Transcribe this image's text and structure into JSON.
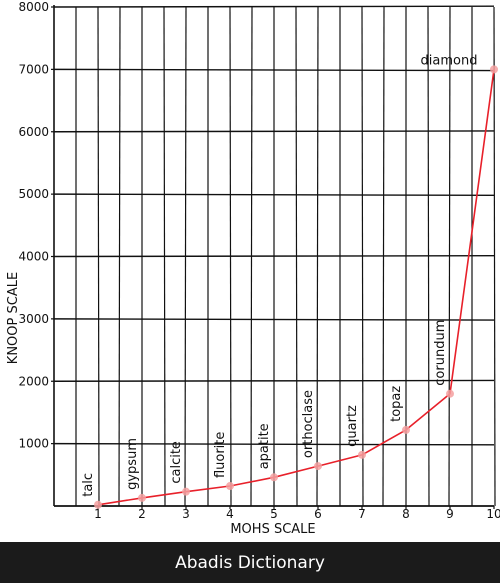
{
  "chart_data": {
    "type": "line",
    "xlabel": "MOHS SCALE",
    "ylabel": "KNOOP  SCALE",
    "xlim": [
      0,
      10
    ],
    "ylim": [
      0,
      8000
    ],
    "x_ticks": [
      "1",
      "2",
      "3",
      "4",
      "5",
      "6",
      "7",
      "8",
      "9",
      "10"
    ],
    "y_ticks": [
      "1000",
      "2000",
      "3000",
      "4000",
      "5000",
      "6000",
      "7000",
      "8000"
    ],
    "grid": true,
    "series": [
      {
        "color": "#e8202a",
        "marker_color": "#f4a0a0",
        "points": [
          {
            "x": 1,
            "y": 20,
            "label": "talc"
          },
          {
            "x": 2,
            "y": 130,
            "label": "gypsum"
          },
          {
            "x": 3,
            "y": 230,
            "label": "calcite"
          },
          {
            "x": 4,
            "y": 320,
            "label": "fluorite"
          },
          {
            "x": 5,
            "y": 460,
            "label": "apatite"
          },
          {
            "x": 6,
            "y": 640,
            "label": "orthoclase"
          },
          {
            "x": 7,
            "y": 820,
            "label": "quartz"
          },
          {
            "x": 8,
            "y": 1220,
            "label": "topaz"
          },
          {
            "x": 9,
            "y": 1800,
            "label": "corundum"
          },
          {
            "x": 10,
            "y": 7000,
            "label": "diamond"
          }
        ]
      }
    ]
  },
  "footer": {
    "text": "Abadis Dictionary"
  }
}
